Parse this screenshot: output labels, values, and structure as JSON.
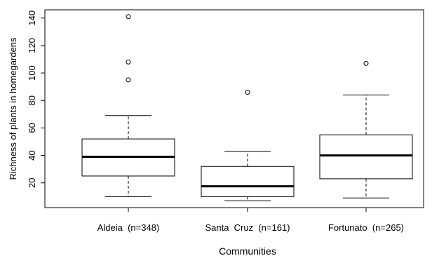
{
  "chart_data": {
    "type": "box",
    "xlabel": "Communities",
    "ylabel": "Richness of plants in homegardens",
    "ylim": [
      2,
      146
    ],
    "yticks": [
      20,
      40,
      60,
      80,
      100,
      120,
      140
    ],
    "grid": false,
    "categories": [
      {
        "label": "Aldeia  (n=348)",
        "min": 10,
        "q1": 25,
        "median": 39,
        "q3": 52,
        "max": 69,
        "outliers": [
          95,
          108,
          141
        ]
      },
      {
        "label": "Santa  Cruz  (n=161)",
        "min": 7,
        "q1": 10,
        "median": 17.5,
        "q3": 32,
        "max": 43,
        "outliers": [
          86
        ]
      },
      {
        "label": "Fortunato  (n=265)",
        "min": 9,
        "q1": 23,
        "median": 40,
        "q3": 55,
        "max": 84,
        "outliers": [
          107
        ]
      }
    ]
  }
}
